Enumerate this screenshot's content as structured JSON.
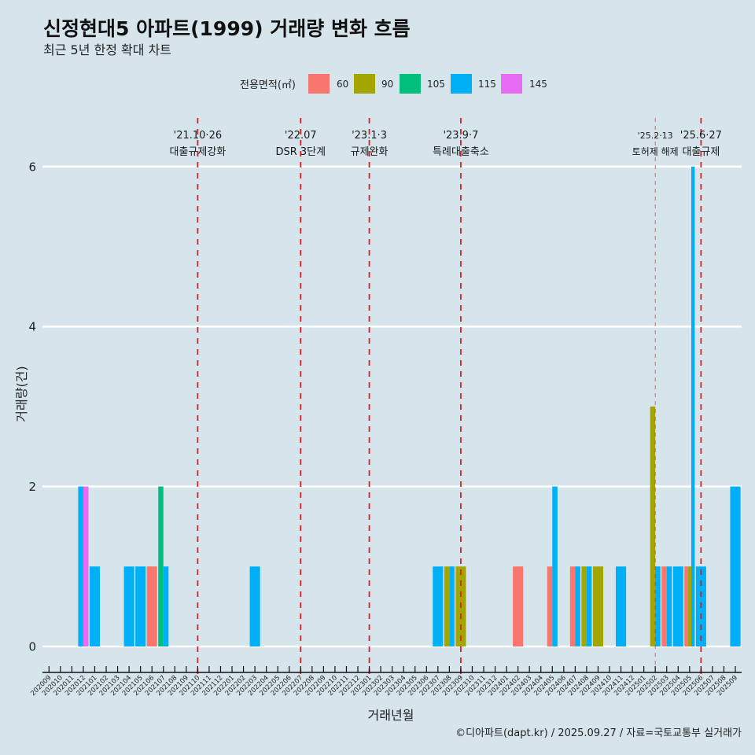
{
  "chart_data": {
    "type": "bar",
    "title": "신정현대5 아파트(1999) 거래량 변화 흐름",
    "subtitle": "최근 5년 한정 확대 차트",
    "xlabel": "거래년월",
    "ylabel": "거래량(건)",
    "caption": "©디아파트(dapt.kr) / 2025.09.27 / 자료=국토교통부 실거래가",
    "legend": {
      "title": "전용면적(㎡)",
      "position": "top"
    },
    "bar_position": "dodge",
    "ylim": [
      0,
      6
    ],
    "y_ticks": [
      0,
      2,
      4,
      6
    ],
    "grid": {
      "horizontal": true,
      "vertical": false
    },
    "categories": [
      "202009",
      "202010",
      "202011",
      "202012",
      "202101",
      "202102",
      "202103",
      "202104",
      "202105",
      "202106",
      "202107",
      "202108",
      "202109",
      "202110",
      "202111",
      "202112",
      "202201",
      "202202",
      "202203",
      "202204",
      "202205",
      "202206",
      "202207",
      "202208",
      "202209",
      "202210",
      "202211",
      "202212",
      "202301",
      "202302",
      "202303",
      "202304",
      "202305",
      "202306",
      "202307",
      "202308",
      "202309",
      "202310",
      "202311",
      "202312",
      "202401",
      "202402",
      "202403",
      "202404",
      "202405",
      "202406",
      "202407",
      "202408",
      "202409",
      "202410",
      "202411",
      "202412",
      "202501",
      "202502",
      "202503",
      "202504",
      "202505",
      "202506",
      "202507",
      "202508",
      "202509"
    ],
    "series": [
      {
        "name": "60",
        "color": "#F8766D",
        "values": [
          0,
          0,
          0,
          0,
          0,
          0,
          0,
          0,
          0,
          1,
          0,
          0,
          0,
          0,
          0,
          0,
          0,
          0,
          0,
          0,
          0,
          0,
          0,
          0,
          0,
          0,
          0,
          0,
          0,
          0,
          0,
          0,
          0,
          0,
          0,
          0,
          0,
          0,
          0,
          0,
          0,
          1,
          0,
          0,
          1,
          0,
          1,
          0,
          0,
          0,
          0,
          0,
          0,
          0,
          1,
          0,
          1,
          0,
          0,
          0,
          0
        ]
      },
      {
        "name": "90",
        "color": "#A3A500",
        "values": [
          0,
          0,
          0,
          0,
          0,
          0,
          0,
          0,
          0,
          0,
          0,
          0,
          0,
          0,
          0,
          0,
          0,
          0,
          0,
          0,
          0,
          0,
          0,
          0,
          0,
          0,
          0,
          0,
          0,
          0,
          0,
          0,
          0,
          0,
          0,
          1,
          1,
          0,
          0,
          0,
          0,
          0,
          0,
          0,
          0,
          0,
          0,
          1,
          1,
          0,
          0,
          0,
          0,
          3,
          0,
          0,
          1,
          0,
          0,
          0,
          0
        ]
      },
      {
        "name": "105",
        "color": "#00BF7D",
        "values": [
          0,
          0,
          0,
          0,
          0,
          0,
          0,
          0,
          0,
          0,
          2,
          0,
          0,
          0,
          0,
          0,
          0,
          0,
          0,
          0,
          0,
          0,
          0,
          0,
          0,
          0,
          0,
          0,
          0,
          0,
          0,
          0,
          0,
          0,
          0,
          0,
          0,
          0,
          0,
          0,
          0,
          0,
          0,
          0,
          0,
          0,
          0,
          0,
          0,
          0,
          0,
          0,
          0,
          0,
          0,
          0,
          0,
          0,
          0,
          0,
          0
        ]
      },
      {
        "name": "115",
        "color": "#00B0F6",
        "values": [
          0,
          0,
          0,
          2,
          1,
          0,
          0,
          1,
          1,
          0,
          1,
          0,
          0,
          0,
          0,
          0,
          0,
          0,
          1,
          0,
          0,
          0,
          0,
          0,
          0,
          0,
          0,
          0,
          0,
          0,
          0,
          0,
          0,
          0,
          1,
          1,
          0,
          0,
          0,
          0,
          0,
          0,
          0,
          0,
          2,
          0,
          1,
          1,
          0,
          0,
          1,
          0,
          0,
          1,
          1,
          1,
          6,
          1,
          0,
          0,
          2
        ]
      },
      {
        "name": "145",
        "color": "#E76BF3",
        "values": [
          0,
          0,
          0,
          2,
          0,
          0,
          0,
          0,
          0,
          0,
          0,
          0,
          0,
          0,
          0,
          0,
          0,
          0,
          0,
          0,
          0,
          0,
          0,
          0,
          0,
          0,
          0,
          0,
          0,
          0,
          0,
          0,
          0,
          0,
          0,
          0,
          0,
          0,
          0,
          0,
          0,
          0,
          0,
          0,
          0,
          0,
          0,
          0,
          0,
          0,
          0,
          0,
          0,
          0,
          0,
          0,
          0,
          0,
          0,
          0,
          0
        ]
      }
    ],
    "annotations": [
      {
        "x": "202110",
        "date": "'21.10·26",
        "label": "대출규제강화",
        "emphasis": "normal"
      },
      {
        "x": "202207",
        "date": "'22.07",
        "label": "DSR 3단계",
        "emphasis": "normal"
      },
      {
        "x": "202301",
        "date": "'23.1·3",
        "label": "규제완화",
        "emphasis": "normal"
      },
      {
        "x": "202309",
        "date": "'23.9·7",
        "label": "특례대출축소",
        "emphasis": "normal"
      },
      {
        "x": "202502",
        "date": "'25.2·13",
        "label": "토허제 해제",
        "emphasis": "light"
      },
      {
        "x": "202506",
        "date": "'25.6·27",
        "label": "대출규제",
        "emphasis": "normal"
      }
    ],
    "annotation_line_color": "#e31a1c"
  },
  "theme": {
    "background": "#d6e4ec",
    "gridline": "#ffffff",
    "axis": "#111111"
  }
}
